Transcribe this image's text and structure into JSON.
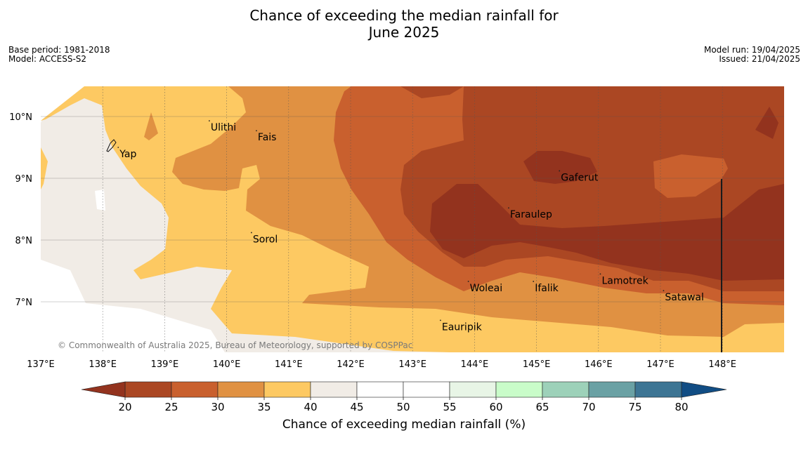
{
  "title": {
    "line1": "Chance of exceeding the median rainfall for",
    "line2": "June 2025"
  },
  "meta_left": {
    "base_period": "Base period: 1981-2018",
    "model": "Model: ACCESS-S2"
  },
  "meta_right": {
    "model_run": "Model run: 19/04/2025",
    "issued": "Issued: 21/04/2025"
  },
  "map": {
    "lat_labels": [
      "10°N",
      "9°N",
      "8°N",
      "7°N"
    ],
    "lon_labels": [
      "137°E",
      "138°E",
      "139°E",
      "140°E",
      "141°E",
      "142°E",
      "143°E",
      "144°E",
      "145°E",
      "146°E",
      "147°E",
      "148°E"
    ],
    "places": [
      {
        "name": "Yap",
        "lon": 138.25,
        "lat": 9.5
      },
      {
        "name": "Ulithi",
        "lon": 139.72,
        "lat": 9.93
      },
      {
        "name": "Fais",
        "lon": 140.48,
        "lat": 9.77
      },
      {
        "name": "Gaferut",
        "lon": 145.37,
        "lat": 9.12
      },
      {
        "name": "Faraulep",
        "lon": 144.55,
        "lat": 8.52
      },
      {
        "name": "Sorol",
        "lon": 140.4,
        "lat": 8.12
      },
      {
        "name": "Lamotrek",
        "lon": 146.03,
        "lat": 7.45
      },
      {
        "name": "Woleai",
        "lon": 143.9,
        "lat": 7.33
      },
      {
        "name": "Ifalik",
        "lon": 144.95,
        "lat": 7.33
      },
      {
        "name": "Satawal",
        "lon": 147.05,
        "lat": 7.18
      },
      {
        "name": "Eauripik",
        "lon": 143.45,
        "lat": 6.7
      }
    ],
    "copyright": "© Commonwealth of Australia 2025, Bureau of Meteorology, supported by COSPPac"
  },
  "colorbar": {
    "title": "Chance of exceeding median rainfall (%)",
    "ticks": [
      "20",
      "25",
      "30",
      "35",
      "40",
      "45",
      "50",
      "55",
      "60",
      "65",
      "70",
      "75",
      "80"
    ],
    "colors": [
      "#ab4723",
      "#c9602e",
      "#e09142",
      "#fdc962",
      "#f1ece6",
      "#ffffff",
      "#ffffff",
      "#e8f5e6",
      "#c9fcc9",
      "#9dd1b9",
      "#6aa1a4",
      "#3d7594"
    ],
    "under_color": "#93331e",
    "over_color": "#114d84"
  },
  "colors": {
    "c20": "#93331e",
    "c25": "#ab4723",
    "c30": "#c9602e",
    "c35": "#e09142",
    "c40": "#fdc962",
    "c45": "#f1ece6"
  }
}
